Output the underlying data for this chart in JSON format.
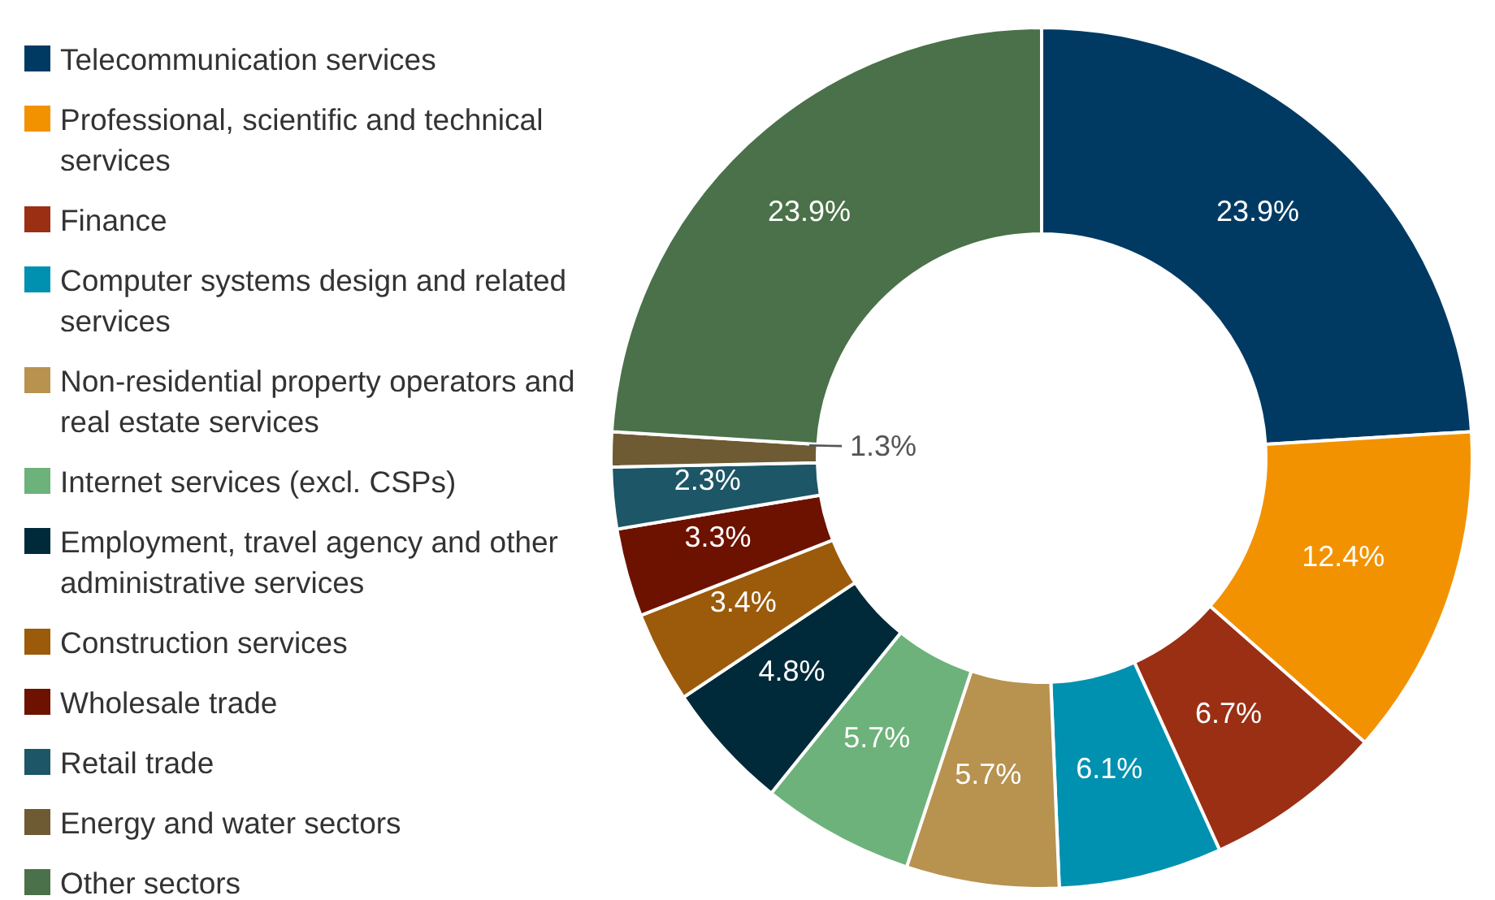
{
  "chart_data": {
    "type": "donut",
    "legend": "left",
    "value_labels": [
      "23.9%",
      "12.4%",
      "6.7%",
      "6.1%",
      "5.7%",
      "5.7%",
      "4.8%",
      "3.4%",
      "3.3%",
      "2.3%",
      "1.3%",
      "23.9%"
    ],
    "categories": [
      "Telecommunication services",
      "Professional, scientific and technical services",
      "Finance",
      "Computer systems design and related services",
      "Non-residential property operators and real estate services",
      "Internet services (excl. CSPs)",
      "Employment, travel agency and other administrative services",
      "Construction services",
      "Wholesale trade",
      "Retail trade",
      "Energy and water sectors",
      "Other sectors"
    ],
    "values": [
      23.9,
      12.4,
      6.7,
      6.1,
      5.7,
      5.7,
      4.8,
      3.4,
      3.3,
      2.3,
      1.3,
      23.9
    ],
    "colors": [
      "#003a63",
      "#f39200",
      "#9b2f14",
      "#0091b0",
      "#b8924f",
      "#6db27a",
      "#002a3a",
      "#9c5b0b",
      "#6d1200",
      "#1d5666",
      "#6e5a33",
      "#4a7149"
    ]
  }
}
